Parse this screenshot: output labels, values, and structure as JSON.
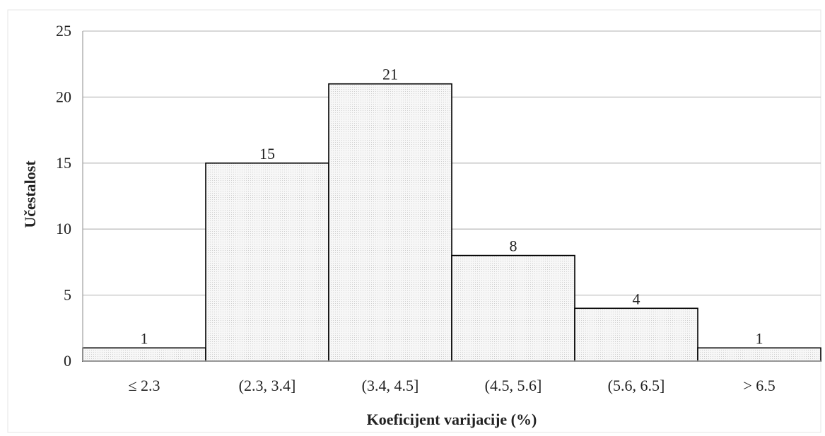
{
  "chart_data": {
    "type": "bar",
    "title": "",
    "xlabel": "Koeficijent varijacije (%)",
    "ylabel": "Učestalost",
    "categories": [
      "≤ 2.3",
      "(2.3, 3.4]",
      "(3.4, 4.5]",
      "(4.5, 5.6]",
      "(5.6, 6.5]",
      "> 6.5"
    ],
    "values": [
      1,
      15,
      21,
      8,
      4,
      1
    ],
    "ylim": [
      0,
      25
    ],
    "yticks": [
      0,
      5,
      10,
      15,
      20,
      25
    ],
    "data_labels": true,
    "grid": true,
    "legend": "none",
    "colors": {
      "bar_fill": "#f2f2f2",
      "bar_stroke": "#000000",
      "grid": "#c0c0c0",
      "axis": "#a6a6a6"
    }
  }
}
